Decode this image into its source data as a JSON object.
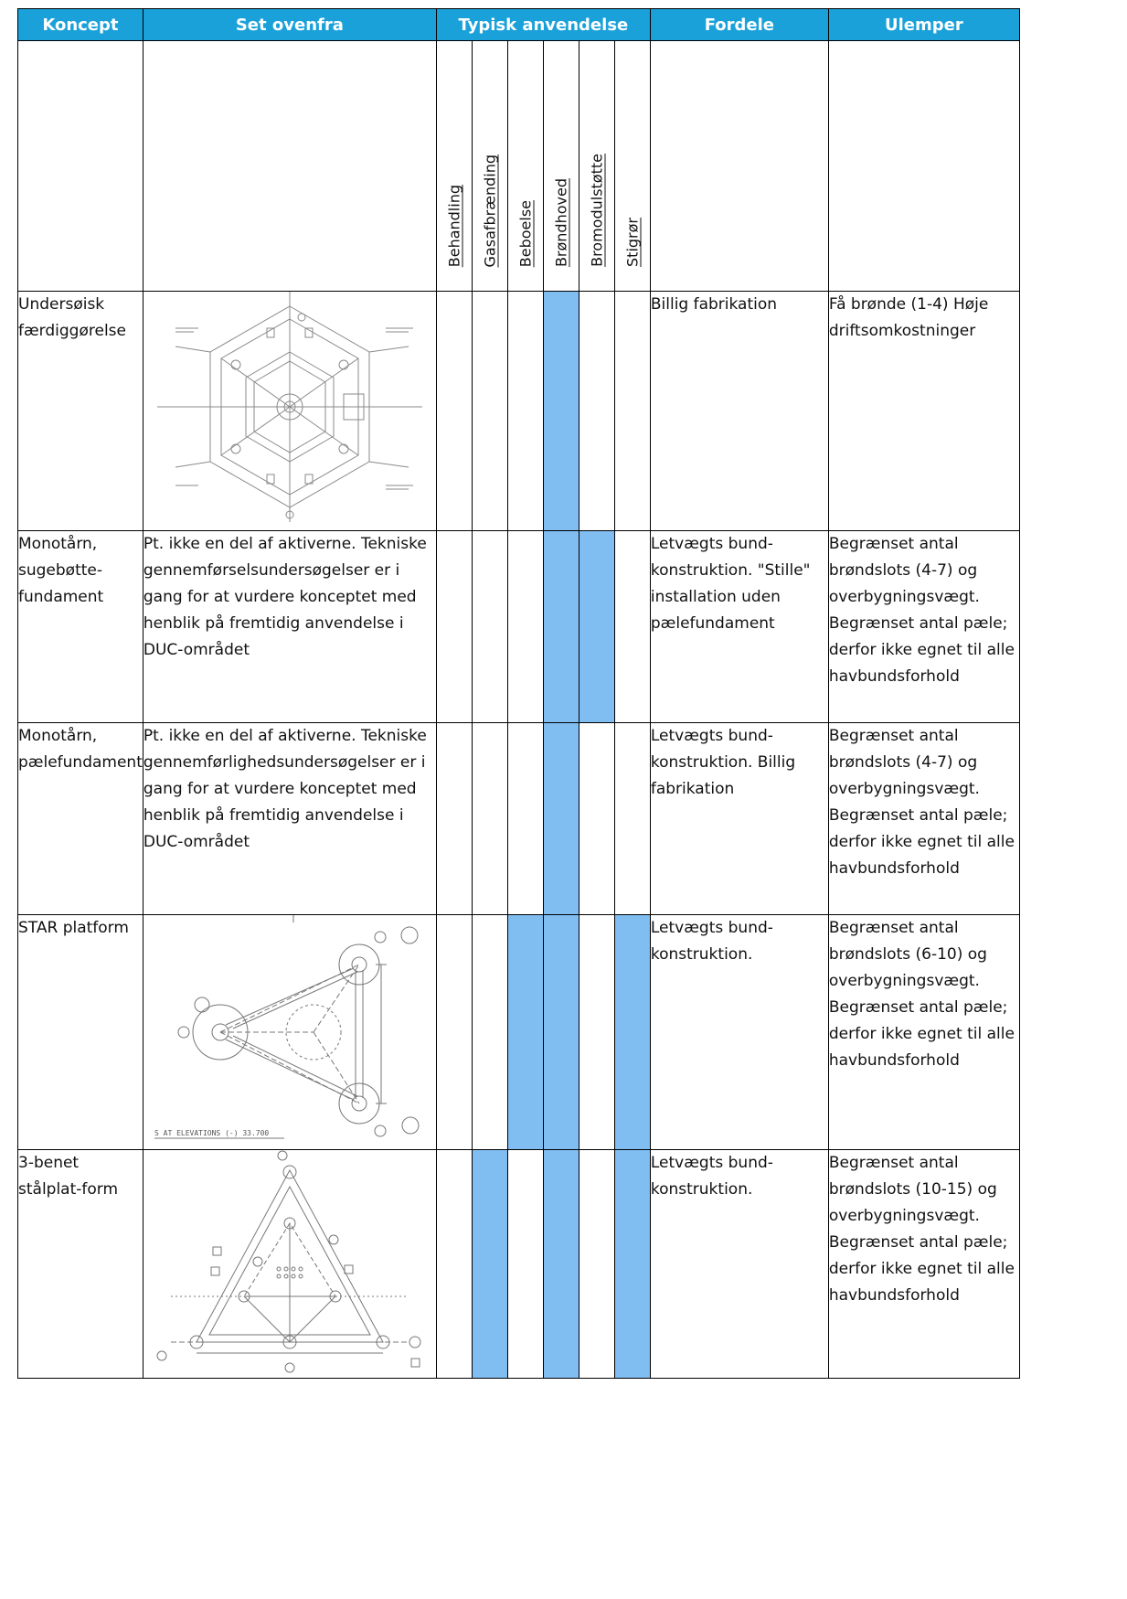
{
  "header": {
    "koncept": "Koncept",
    "set_ovenfra": "Set ovenfra",
    "typisk_anvendelse": "Typisk anvendelse",
    "fordele": "Fordele",
    "ulemper": "Ulemper"
  },
  "usage_types": [
    "Behandling",
    "Gasafbrænding",
    "Beboelse",
    "Brøndhoved",
    "Bromodulstøtte",
    "Stigrør"
  ],
  "rows": [
    {
      "concept": "Undersøisk færdiggørelse",
      "top_view_text": "",
      "usage": [
        false,
        false,
        false,
        true,
        false,
        false
      ],
      "fordele": "Billig fabrikation",
      "ulemper": "Få brønde (1-4) Høje driftsomkostninger"
    },
    {
      "concept": "Monotårn, sugebøtte-fundament",
      "top_view_text": "Pt. ikke en del af aktiverne. Tekniske gennemførselsundersøgelser er i gang for at vurdere konceptet med henblik på fremtidig anvendelse i DUC-området",
      "usage": [
        false,
        false,
        false,
        true,
        true,
        false
      ],
      "fordele": "Letvægts bund-konstruktion. \"Stille\" installation uden pælefundament",
      "ulemper": "Begrænset antal brøndslots (4-7) og overbygningsvægt. Begrænset antal pæle; derfor ikke egnet til alle havbundsforhold"
    },
    {
      "concept": "Monotårn, pælefundament",
      "top_view_text": "Pt. ikke en del af aktiverne. Tekniske gennemførlighedsundersøgelser er i gang for at vurdere konceptet med henblik på fremtidig anvendelse i DUC-området",
      "usage": [
        false,
        false,
        false,
        true,
        false,
        false
      ],
      "fordele": "Letvægts bund-konstruktion. Billig fabrikation",
      "ulemper": "Begrænset antal brøndslots (4-7) og overbygningsvægt. Begrænset antal pæle; derfor ikke egnet til alle havbundsforhold"
    },
    {
      "concept": "STAR platform",
      "top_view_text": "",
      "usage": [
        false,
        false,
        true,
        true,
        false,
        true
      ],
      "fordele": "Letvægts bund-konstruktion.",
      "ulemper": "Begrænset antal brøndslots (6-10) og overbygningsvægt. Begrænset antal pæle; derfor ikke egnet til alle havbundsforhold"
    },
    {
      "concept": "3-benet stålplat-form",
      "top_view_text": "",
      "usage": [
        false,
        true,
        false,
        true,
        false,
        true
      ],
      "fordele": "Letvægts bund-konstruktion.",
      "ulemper": "Begrænset antal brøndslots (10-15) og overbygningsvægt. Begrænset antal pæle; derfor ikke egnet til alle havbundsforhold"
    }
  ],
  "drawings": {
    "star_caption": "S AT ELEVATIONS (-) 33.700"
  },
  "colors": {
    "header_bg": "#1ba1d9",
    "usage_fill": "#80bdf0"
  }
}
